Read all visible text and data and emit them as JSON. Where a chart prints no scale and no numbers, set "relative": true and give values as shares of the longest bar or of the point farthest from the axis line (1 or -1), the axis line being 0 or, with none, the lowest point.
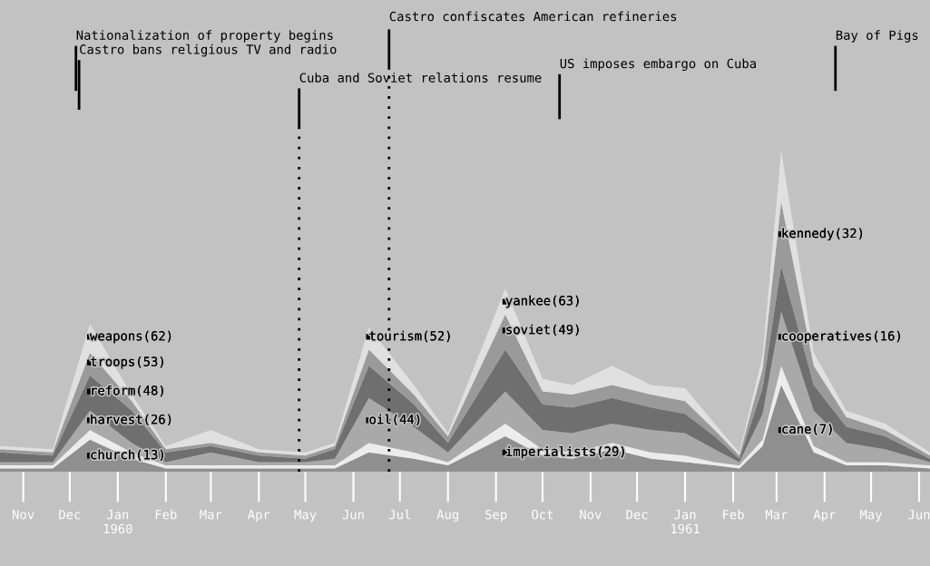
{
  "chart_data": {
    "type": "area",
    "stacked": true,
    "relative": true,
    "grid": false,
    "x": [
      "1959-10-17",
      "1959-11-20",
      "1959-12-14",
      "1960-01-10",
      "1960-02-01",
      "1960-03-01",
      "1960-04-01",
      "1960-05-01",
      "1960-05-20",
      "1960-06-11",
      "1960-07-10",
      "1960-08-01",
      "1960-09-07",
      "1960-10-01",
      "1960-10-20",
      "1960-11-15",
      "1960-12-10",
      "1961-01-01",
      "1961-01-20",
      "1961-02-05",
      "1961-02-20",
      "1961-03-04",
      "1961-03-25",
      "1961-04-15",
      "1961-05-10",
      "1961-06-08"
    ],
    "xlim": [
      "1959-10-17",
      "1961-06-08"
    ],
    "xticks": [
      {
        "value": "1959-11-01",
        "label": "Nov"
      },
      {
        "value": "1959-12-01",
        "label": "Dec"
      },
      {
        "value": "1960-01-01",
        "label": "Jan\n1960"
      },
      {
        "value": "1960-02-01",
        "label": "Feb"
      },
      {
        "value": "1960-03-01",
        "label": "Mar"
      },
      {
        "value": "1960-04-01",
        "label": "Apr"
      },
      {
        "value": "1960-05-01",
        "label": "May"
      },
      {
        "value": "1960-06-01",
        "label": "Jun"
      },
      {
        "value": "1960-07-01",
        "label": "Jul"
      },
      {
        "value": "1960-08-01",
        "label": "Aug"
      },
      {
        "value": "1960-09-01",
        "label": "Sep"
      },
      {
        "value": "1960-10-01",
        "label": "Oct"
      },
      {
        "value": "1960-11-01",
        "label": "Nov"
      },
      {
        "value": "1960-12-01",
        "label": "Dec"
      },
      {
        "value": "1961-01-01",
        "label": "Jan\n1961"
      },
      {
        "value": "1961-02-01",
        "label": "Feb"
      },
      {
        "value": "1961-03-01",
        "label": "Mar"
      },
      {
        "value": "1961-04-01",
        "label": "Apr"
      },
      {
        "value": "1961-05-01",
        "label": "May"
      },
      {
        "value": "1961-06-01",
        "label": "Jun"
      }
    ],
    "series": [
      {
        "color": "#8f8f8f",
        "values": [
          0.01,
          0.01,
          0.1,
          0.04,
          0.01,
          0.01,
          0.01,
          0.01,
          0.01,
          0.06,
          0.04,
          0.02,
          0.11,
          0.05,
          0.04,
          0.07,
          0.04,
          0.03,
          0.02,
          0.01,
          0.08,
          0.27,
          0.06,
          0.02,
          0.02,
          0.01
        ]
      },
      {
        "color": "#ececec",
        "values": [
          0.01,
          0.01,
          0.03,
          0.02,
          0.01,
          0.01,
          0.01,
          0.01,
          0.01,
          0.03,
          0.02,
          0.01,
          0.04,
          0.02,
          0.02,
          0.02,
          0.02,
          0.02,
          0.01,
          0.01,
          0.02,
          0.06,
          0.02,
          0.01,
          0.01,
          0.01
        ]
      },
      {
        "color": "#a9a9a9",
        "values": [
          0.01,
          0.01,
          0.06,
          0.03,
          0.01,
          0.04,
          0.01,
          0.01,
          0.02,
          0.14,
          0.08,
          0.03,
          0.1,
          0.06,
          0.06,
          0.06,
          0.07,
          0.07,
          0.04,
          0.01,
          0.08,
          0.17,
          0.11,
          0.06,
          0.04,
          0.01
        ]
      },
      {
        "color": "#6f6f6f",
        "values": [
          0.03,
          0.02,
          0.11,
          0.1,
          0.03,
          0.02,
          0.02,
          0.01,
          0.03,
          0.1,
          0.07,
          0.03,
          0.13,
          0.08,
          0.08,
          0.08,
          0.07,
          0.06,
          0.04,
          0.01,
          0.08,
          0.14,
          0.08,
          0.05,
          0.04,
          0.01
        ]
      },
      {
        "color": "#9a9a9a",
        "values": [
          0.01,
          0.01,
          0.07,
          0.03,
          0.01,
          0.01,
          0.01,
          0.01,
          0.01,
          0.05,
          0.03,
          0.02,
          0.11,
          0.04,
          0.04,
          0.04,
          0.04,
          0.04,
          0.02,
          0.01,
          0.06,
          0.2,
          0.06,
          0.03,
          0.02,
          0.01
        ]
      },
      {
        "color": "#e0e0e0",
        "values": [
          0.01,
          0.01,
          0.09,
          0.02,
          0.01,
          0.04,
          0.01,
          0.01,
          0.01,
          0.07,
          0.03,
          0.01,
          0.08,
          0.04,
          0.03,
          0.06,
          0.03,
          0.04,
          0.02,
          0.01,
          0.04,
          0.16,
          0.04,
          0.02,
          0.02,
          0.01
        ]
      }
    ],
    "ref_lines": [
      {
        "axis": "x",
        "value": "1959-12-05",
        "label": "Nationalization of property begins",
        "line_style": "solid",
        "color": "#000000"
      },
      {
        "axis": "x",
        "value": "1959-12-07",
        "label": "Castro bans religious TV and radio",
        "line_style": "solid",
        "color": "#000000"
      },
      {
        "axis": "x",
        "value": "1960-04-27",
        "label": "Cuba and Soviet relations resume",
        "line_style": "dotted",
        "color": "#000000"
      },
      {
        "axis": "x",
        "value": "1960-06-24",
        "label": "Castro confiscates American refineries",
        "line_style": "dotted",
        "color": "#000000"
      },
      {
        "axis": "x",
        "value": "1960-10-12",
        "label": "US imposes embargo on Cuba",
        "line_style": "solid",
        "color": "#000000"
      },
      {
        "axis": "x",
        "value": "1961-04-08",
        "label": "Bay of Pigs",
        "line_style": "solid",
        "color": "#000000"
      }
    ],
    "annotations": [
      {
        "text": "weapons(62)",
        "x": "1959-12-14",
        "y": 0.42
      },
      {
        "text": "troops(53)",
        "x": "1959-12-14",
        "y": 0.34
      },
      {
        "text": "reform(48)",
        "x": "1959-12-14",
        "y": 0.25
      },
      {
        "text": "harvest(26)",
        "x": "1959-12-14",
        "y": 0.16
      },
      {
        "text": "church(13)",
        "x": "1959-12-14",
        "y": 0.05
      },
      {
        "text": "tourism(52)",
        "x": "1960-06-11",
        "y": 0.42
      },
      {
        "text": "oil(44)",
        "x": "1960-06-11",
        "y": 0.16
      },
      {
        "text": "yankee(63)",
        "x": "1960-09-07",
        "y": 0.53
      },
      {
        "text": "soviet(49)",
        "x": "1960-09-07",
        "y": 0.44
      },
      {
        "text": "imperialists(29)",
        "x": "1960-09-07",
        "y": 0.06
      },
      {
        "text": "kennedy(32)",
        "x": "1961-03-04",
        "y": 0.74
      },
      {
        "text": "cooperatives(16)",
        "x": "1961-03-04",
        "y": 0.42
      },
      {
        "text": "cane(7)",
        "x": "1961-03-04",
        "y": 0.13
      }
    ]
  }
}
